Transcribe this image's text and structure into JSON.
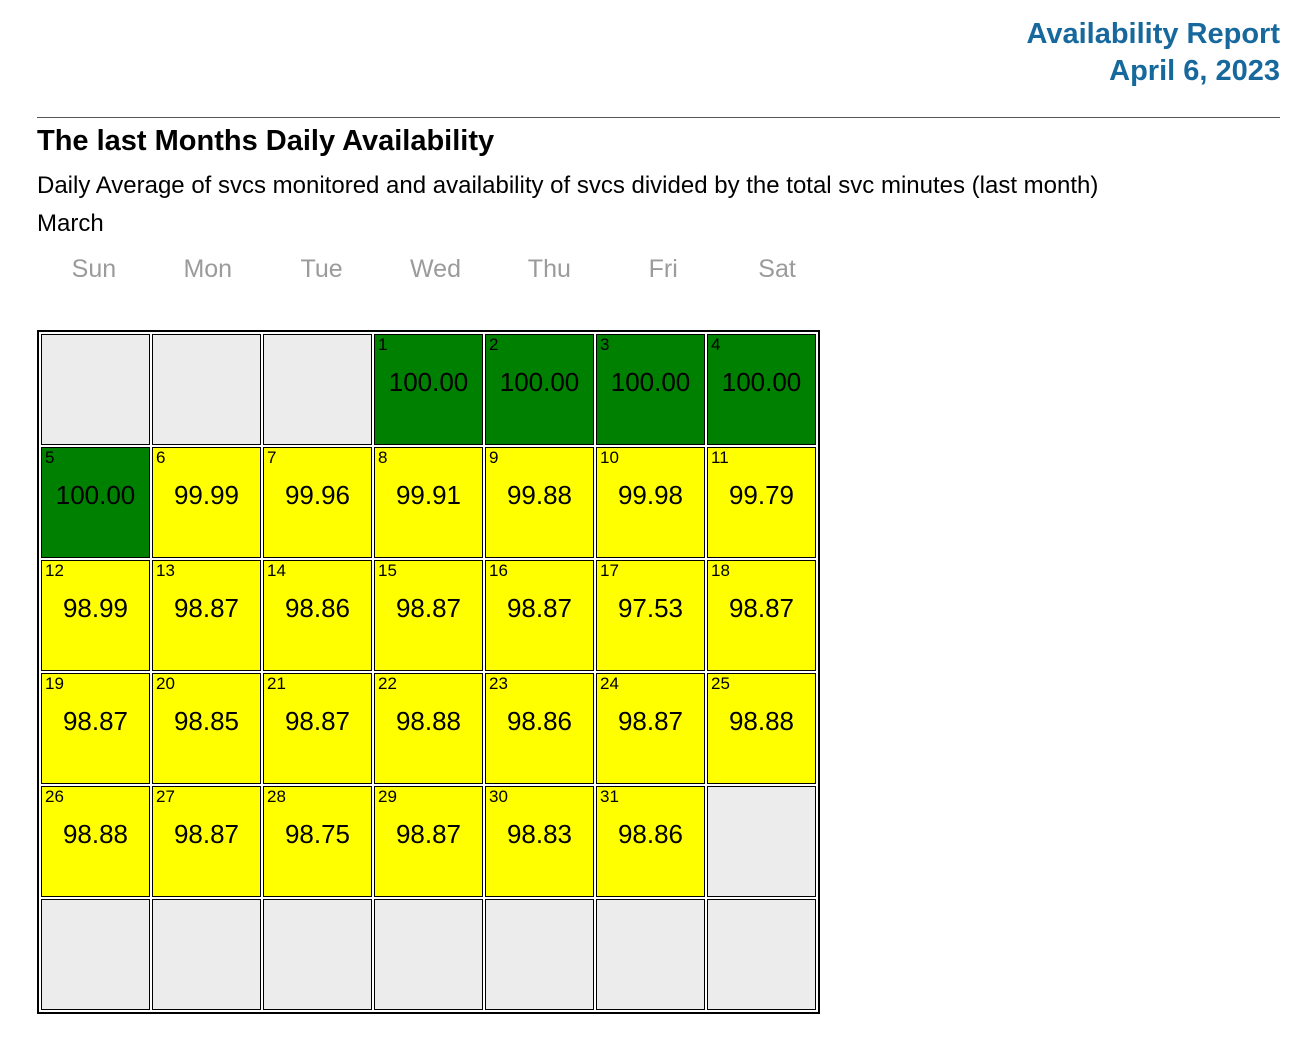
{
  "report_header": {
    "title": "Availability Report",
    "date": "April 6, 2023",
    "color": "#17699d"
  },
  "section": {
    "heading": "The last Months Daily Availability",
    "description": "Daily Average of svcs monitored and availability of svcs divided by the total svc minutes (last month)",
    "month": "March"
  },
  "calendar": {
    "day_headers": [
      "Sun",
      "Mon",
      "Tue",
      "Wed",
      "Thu",
      "Fri",
      "Sat"
    ],
    "status_colors": {
      "full": "#008000",
      "partial": "#ffff00",
      "empty": "#ececec"
    },
    "weeks": [
      [
        null,
        null,
        null,
        {
          "day": "1",
          "value": "100.00",
          "status": "full"
        },
        {
          "day": "2",
          "value": "100.00",
          "status": "full"
        },
        {
          "day": "3",
          "value": "100.00",
          "status": "full"
        },
        {
          "day": "4",
          "value": "100.00",
          "status": "full"
        }
      ],
      [
        {
          "day": "5",
          "value": "100.00",
          "status": "full"
        },
        {
          "day": "6",
          "value": "99.99",
          "status": "partial"
        },
        {
          "day": "7",
          "value": "99.96",
          "status": "partial"
        },
        {
          "day": "8",
          "value": "99.91",
          "status": "partial"
        },
        {
          "day": "9",
          "value": "99.88",
          "status": "partial"
        },
        {
          "day": "10",
          "value": "99.98",
          "status": "partial"
        },
        {
          "day": "11",
          "value": "99.79",
          "status": "partial"
        }
      ],
      [
        {
          "day": "12",
          "value": "98.99",
          "status": "partial"
        },
        {
          "day": "13",
          "value": "98.87",
          "status": "partial"
        },
        {
          "day": "14",
          "value": "98.86",
          "status": "partial"
        },
        {
          "day": "15",
          "value": "98.87",
          "status": "partial"
        },
        {
          "day": "16",
          "value": "98.87",
          "status": "partial"
        },
        {
          "day": "17",
          "value": "97.53",
          "status": "partial"
        },
        {
          "day": "18",
          "value": "98.87",
          "status": "partial"
        }
      ],
      [
        {
          "day": "19",
          "value": "98.87",
          "status": "partial"
        },
        {
          "day": "20",
          "value": "98.85",
          "status": "partial"
        },
        {
          "day": "21",
          "value": "98.87",
          "status": "partial"
        },
        {
          "day": "22",
          "value": "98.88",
          "status": "partial"
        },
        {
          "day": "23",
          "value": "98.86",
          "status": "partial"
        },
        {
          "day": "24",
          "value": "98.87",
          "status": "partial"
        },
        {
          "day": "25",
          "value": "98.88",
          "status": "partial"
        }
      ],
      [
        {
          "day": "26",
          "value": "98.88",
          "status": "partial"
        },
        {
          "day": "27",
          "value": "98.87",
          "status": "partial"
        },
        {
          "day": "28",
          "value": "98.75",
          "status": "partial"
        },
        {
          "day": "29",
          "value": "98.87",
          "status": "partial"
        },
        {
          "day": "30",
          "value": "98.83",
          "status": "partial"
        },
        {
          "day": "31",
          "value": "98.86",
          "status": "partial"
        },
        null
      ],
      [
        null,
        null,
        null,
        null,
        null,
        null,
        null
      ]
    ]
  }
}
